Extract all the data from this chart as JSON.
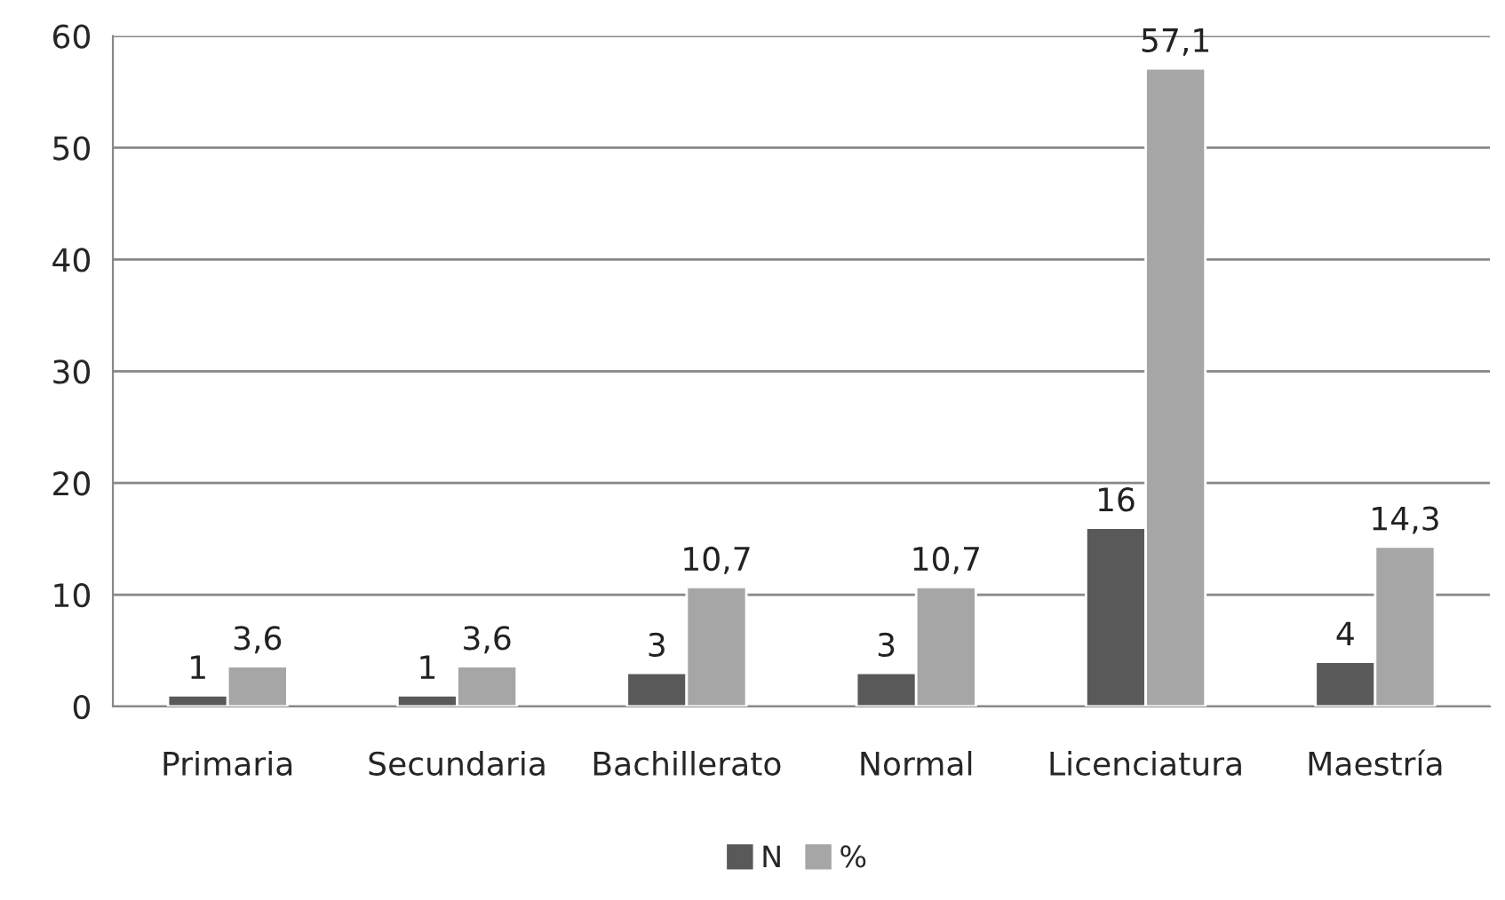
{
  "chart_data": {
    "type": "bar",
    "categories": [
      "Primaria",
      "Secundaria",
      "Bachillerato",
      "Normal",
      "Licenciatura",
      "Maestría"
    ],
    "series": [
      {
        "name": "N",
        "color": "#595959",
        "values": [
          1,
          1,
          3,
          3,
          16,
          4
        ],
        "value_labels": [
          "1",
          "1",
          "3",
          "3",
          "16",
          "4"
        ]
      },
      {
        "name": "%",
        "color": "#a6a6a6",
        "values": [
          3.6,
          3.6,
          10.7,
          10.7,
          57.1,
          14.3
        ],
        "value_labels": [
          "3,6",
          "3,6",
          "10,7",
          "10,7",
          "57,1",
          "14,3"
        ]
      }
    ],
    "ylim": [
      0,
      60
    ],
    "yticks": [
      0,
      10,
      20,
      30,
      40,
      50,
      60
    ],
    "grid": "y",
    "legend": "bottom"
  }
}
